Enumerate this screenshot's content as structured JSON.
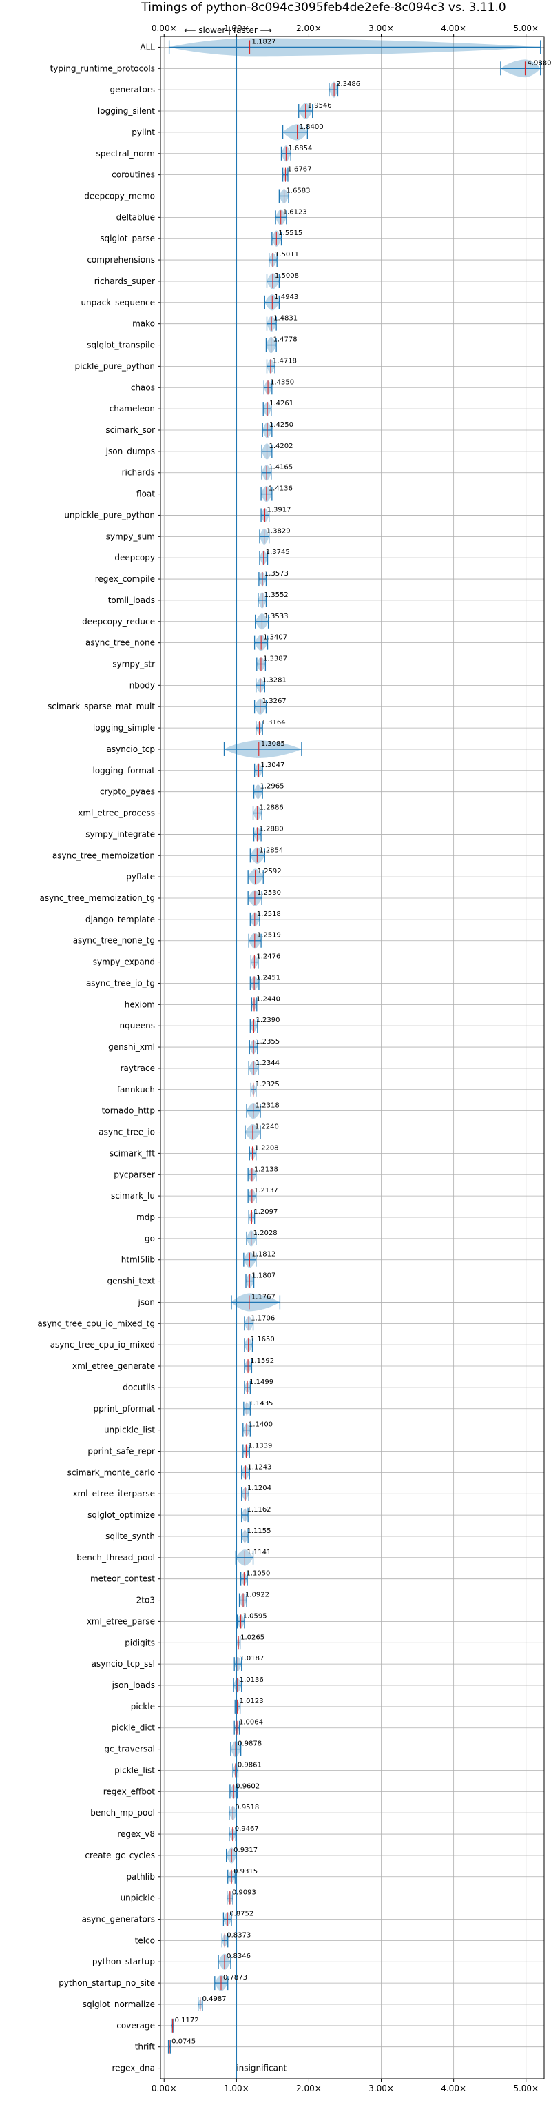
{
  "chart_data": {
    "type": "violin",
    "title": "Timings of python-8c094c3095feb4de2efe-8c094c3 vs. 3.11.0",
    "direction_label": "⟵ slower | faster ⟶",
    "xlim": [
      -0.05,
      5.25
    ],
    "xticks": [
      0,
      1,
      2,
      3,
      4,
      5
    ],
    "xtick_labels": [
      "0.00×",
      "1.00×",
      "2.00×",
      "3.00×",
      "4.00×",
      "5.00×"
    ],
    "reference_line": 1.0,
    "grid": true,
    "benchmarks": [
      {
        "name": "ALL",
        "value": 1.1827,
        "label": "1.1827",
        "lo": 0.07,
        "hi": 5.2,
        "w": 1.0,
        "sig": true
      },
      {
        "name": "typing_runtime_protocols",
        "value": 4.988,
        "label": "4.9880",
        "lo": 4.65,
        "hi": 5.2,
        "w": 1.0,
        "sig": true
      },
      {
        "name": "generators",
        "value": 2.3486,
        "label": "2.3486",
        "lo": 2.28,
        "hi": 2.4,
        "w": 0.9,
        "sig": true
      },
      {
        "name": "logging_silent",
        "value": 1.9546,
        "label": "1.9546",
        "lo": 1.86,
        "hi": 2.05,
        "w": 0.9,
        "sig": true
      },
      {
        "name": "pylint",
        "value": 1.84,
        "label": "1.8400",
        "lo": 1.64,
        "hi": 1.98,
        "w": 0.9,
        "sig": true
      },
      {
        "name": "spectral_norm",
        "value": 1.6854,
        "label": "1.6854",
        "lo": 1.62,
        "hi": 1.75,
        "w": 0.9,
        "sig": true
      },
      {
        "name": "coroutines",
        "value": 1.6767,
        "label": "1.6767",
        "lo": 1.64,
        "hi": 1.71,
        "w": 0.7,
        "sig": true
      },
      {
        "name": "deepcopy_memo",
        "value": 1.6583,
        "label": "1.6583",
        "lo": 1.59,
        "hi": 1.72,
        "w": 0.8,
        "sig": true
      },
      {
        "name": "deltablue",
        "value": 1.6123,
        "label": "1.6123",
        "lo": 1.54,
        "hi": 1.69,
        "w": 0.9,
        "sig": true
      },
      {
        "name": "sqlglot_parse",
        "value": 1.5515,
        "label": "1.5515",
        "lo": 1.49,
        "hi": 1.62,
        "w": 0.9,
        "sig": true
      },
      {
        "name": "comprehensions",
        "value": 1.5011,
        "label": "1.5011",
        "lo": 1.45,
        "hi": 1.56,
        "w": 0.8,
        "sig": true
      },
      {
        "name": "richards_super",
        "value": 1.5008,
        "label": "1.5008",
        "lo": 1.42,
        "hi": 1.59,
        "w": 0.9,
        "sig": true
      },
      {
        "name": "unpack_sequence",
        "value": 1.4943,
        "label": "1.4943",
        "lo": 1.39,
        "hi": 1.59,
        "w": 0.9,
        "sig": true
      },
      {
        "name": "mako",
        "value": 1.4831,
        "label": "1.4831",
        "lo": 1.42,
        "hi": 1.55,
        "w": 0.9,
        "sig": true
      },
      {
        "name": "sqlglot_transpile",
        "value": 1.4778,
        "label": "1.4778",
        "lo": 1.41,
        "hi": 1.55,
        "w": 0.9,
        "sig": true
      },
      {
        "name": "pickle_pure_python",
        "value": 1.4718,
        "label": "1.4718",
        "lo": 1.42,
        "hi": 1.53,
        "w": 0.8,
        "sig": true
      },
      {
        "name": "chaos",
        "value": 1.435,
        "label": "1.4350",
        "lo": 1.38,
        "hi": 1.49,
        "w": 0.8,
        "sig": true
      },
      {
        "name": "chameleon",
        "value": 1.4261,
        "label": "1.4261",
        "lo": 1.37,
        "hi": 1.48,
        "w": 0.8,
        "sig": true
      },
      {
        "name": "scimark_sor",
        "value": 1.425,
        "label": "1.4250",
        "lo": 1.36,
        "hi": 1.49,
        "w": 0.9,
        "sig": true
      },
      {
        "name": "json_dumps",
        "value": 1.4202,
        "label": "1.4202",
        "lo": 1.35,
        "hi": 1.49,
        "w": 0.9,
        "sig": true
      },
      {
        "name": "richards",
        "value": 1.4165,
        "label": "1.4165",
        "lo": 1.35,
        "hi": 1.48,
        "w": 0.9,
        "sig": true
      },
      {
        "name": "float",
        "value": 1.4136,
        "label": "1.4136",
        "lo": 1.34,
        "hi": 1.49,
        "w": 0.9,
        "sig": true
      },
      {
        "name": "unpickle_pure_python",
        "value": 1.3917,
        "label": "1.3917",
        "lo": 1.34,
        "hi": 1.45,
        "w": 0.8,
        "sig": true
      },
      {
        "name": "sympy_sum",
        "value": 1.3829,
        "label": "1.3829",
        "lo": 1.32,
        "hi": 1.45,
        "w": 0.9,
        "sig": true
      },
      {
        "name": "deepcopy",
        "value": 1.3745,
        "label": "1.3745",
        "lo": 1.32,
        "hi": 1.43,
        "w": 0.8,
        "sig": true
      },
      {
        "name": "regex_compile",
        "value": 1.3573,
        "label": "1.3573",
        "lo": 1.31,
        "hi": 1.41,
        "w": 0.8,
        "sig": true
      },
      {
        "name": "tomli_loads",
        "value": 1.3552,
        "label": "1.3552",
        "lo": 1.3,
        "hi": 1.41,
        "w": 0.9,
        "sig": true
      },
      {
        "name": "deepcopy_reduce",
        "value": 1.3533,
        "label": "1.3533",
        "lo": 1.26,
        "hi": 1.44,
        "w": 0.9,
        "sig": true
      },
      {
        "name": "async_tree_none",
        "value": 1.3407,
        "label": "1.3407",
        "lo": 1.25,
        "hi": 1.43,
        "w": 0.9,
        "sig": true
      },
      {
        "name": "sympy_str",
        "value": 1.3387,
        "label": "1.3387",
        "lo": 1.28,
        "hi": 1.4,
        "w": 0.8,
        "sig": true
      },
      {
        "name": "nbody",
        "value": 1.3281,
        "label": "1.3281",
        "lo": 1.27,
        "hi": 1.39,
        "w": 0.8,
        "sig": true
      },
      {
        "name": "scimark_sparse_mat_mult",
        "value": 1.3267,
        "label": "1.3267",
        "lo": 1.25,
        "hi": 1.41,
        "w": 0.9,
        "sig": true
      },
      {
        "name": "logging_simple",
        "value": 1.3164,
        "label": "1.3164",
        "lo": 1.27,
        "hi": 1.36,
        "w": 0.7,
        "sig": true
      },
      {
        "name": "asyncio_tcp",
        "value": 1.3085,
        "label": "1.3085",
        "lo": 0.83,
        "hi": 1.9,
        "w": 1.0,
        "sig": true
      },
      {
        "name": "logging_format",
        "value": 1.3047,
        "label": "1.3047",
        "lo": 1.25,
        "hi": 1.36,
        "w": 0.8,
        "sig": true
      },
      {
        "name": "crypto_pyaes",
        "value": 1.2965,
        "label": "1.2965",
        "lo": 1.24,
        "hi": 1.36,
        "w": 0.8,
        "sig": true
      },
      {
        "name": "xml_etree_process",
        "value": 1.2886,
        "label": "1.2886",
        "lo": 1.23,
        "hi": 1.35,
        "w": 0.8,
        "sig": true
      },
      {
        "name": "sympy_integrate",
        "value": 1.288,
        "label": "1.2880",
        "lo": 1.24,
        "hi": 1.34,
        "w": 0.8,
        "sig": true
      },
      {
        "name": "async_tree_memoization",
        "value": 1.2854,
        "label": "1.2854",
        "lo": 1.19,
        "hi": 1.39,
        "w": 0.9,
        "sig": true
      },
      {
        "name": "pyflate",
        "value": 1.2592,
        "label": "1.2592",
        "lo": 1.16,
        "hi": 1.37,
        "w": 0.9,
        "sig": true
      },
      {
        "name": "async_tree_memoization_tg",
        "value": 1.253,
        "label": "1.2530",
        "lo": 1.16,
        "hi": 1.35,
        "w": 0.9,
        "sig": true
      },
      {
        "name": "django_template",
        "value": 1.2518,
        "label": "1.2518",
        "lo": 1.19,
        "hi": 1.32,
        "w": 0.8,
        "sig": true
      },
      {
        "name": "async_tree_none_tg",
        "value": 1.2519,
        "label": "1.2519",
        "lo": 1.17,
        "hi": 1.34,
        "w": 0.9,
        "sig": true
      },
      {
        "name": "sympy_expand",
        "value": 1.2476,
        "label": "1.2476",
        "lo": 1.2,
        "hi": 1.3,
        "w": 0.7,
        "sig": true
      },
      {
        "name": "async_tree_io_tg",
        "value": 1.2451,
        "label": "1.2451",
        "lo": 1.19,
        "hi": 1.31,
        "w": 0.8,
        "sig": true
      },
      {
        "name": "hexiom",
        "value": 1.244,
        "label": "1.2440",
        "lo": 1.21,
        "hi": 1.28,
        "w": 0.6,
        "sig": true
      },
      {
        "name": "nqueens",
        "value": 1.239,
        "label": "1.2390",
        "lo": 1.19,
        "hi": 1.29,
        "w": 0.7,
        "sig": true
      },
      {
        "name": "genshi_xml",
        "value": 1.2355,
        "label": "1.2355",
        "lo": 1.18,
        "hi": 1.29,
        "w": 0.8,
        "sig": true
      },
      {
        "name": "raytrace",
        "value": 1.2344,
        "label": "1.2344",
        "lo": 1.17,
        "hi": 1.3,
        "w": 0.8,
        "sig": true
      },
      {
        "name": "fannkuch",
        "value": 1.2325,
        "label": "1.2325",
        "lo": 1.2,
        "hi": 1.27,
        "w": 0.6,
        "sig": true
      },
      {
        "name": "tornado_http",
        "value": 1.2318,
        "label": "1.2318",
        "lo": 1.14,
        "hi": 1.33,
        "w": 0.9,
        "sig": true
      },
      {
        "name": "async_tree_io",
        "value": 1.224,
        "label": "1.2240",
        "lo": 1.12,
        "hi": 1.33,
        "w": 0.9,
        "sig": true
      },
      {
        "name": "scimark_fft",
        "value": 1.2208,
        "label": "1.2208",
        "lo": 1.18,
        "hi": 1.27,
        "w": 0.7,
        "sig": true
      },
      {
        "name": "pycparser",
        "value": 1.2138,
        "label": "1.2138",
        "lo": 1.16,
        "hi": 1.27,
        "w": 0.8,
        "sig": true
      },
      {
        "name": "scimark_lu",
        "value": 1.2137,
        "label": "1.2137",
        "lo": 1.16,
        "hi": 1.27,
        "w": 0.8,
        "sig": true
      },
      {
        "name": "mdp",
        "value": 1.2097,
        "label": "1.2097",
        "lo": 1.17,
        "hi": 1.25,
        "w": 0.6,
        "sig": true
      },
      {
        "name": "go",
        "value": 1.2028,
        "label": "1.2028",
        "lo": 1.14,
        "hi": 1.27,
        "w": 0.9,
        "sig": true
      },
      {
        "name": "html5lib",
        "value": 1.1812,
        "label": "1.1812",
        "lo": 1.1,
        "hi": 1.27,
        "w": 0.9,
        "sig": true
      },
      {
        "name": "genshi_text",
        "value": 1.1807,
        "label": "1.1807",
        "lo": 1.13,
        "hi": 1.24,
        "w": 0.8,
        "sig": true
      },
      {
        "name": "json",
        "value": 1.1767,
        "label": "1.1767",
        "lo": 0.93,
        "hi": 1.6,
        "w": 1.0,
        "sig": true
      },
      {
        "name": "async_tree_cpu_io_mixed_tg",
        "value": 1.1706,
        "label": "1.1706",
        "lo": 1.11,
        "hi": 1.23,
        "w": 0.8,
        "sig": true
      },
      {
        "name": "async_tree_cpu_io_mixed",
        "value": 1.165,
        "label": "1.1650",
        "lo": 1.11,
        "hi": 1.22,
        "w": 0.8,
        "sig": true
      },
      {
        "name": "xml_etree_generate",
        "value": 1.1592,
        "label": "1.1592",
        "lo": 1.11,
        "hi": 1.21,
        "w": 0.7,
        "sig": true
      },
      {
        "name": "docutils",
        "value": 1.1499,
        "label": "1.1499",
        "lo": 1.11,
        "hi": 1.19,
        "w": 0.6,
        "sig": true
      },
      {
        "name": "pprint_pformat",
        "value": 1.1435,
        "label": "1.1435",
        "lo": 1.1,
        "hi": 1.19,
        "w": 0.7,
        "sig": true
      },
      {
        "name": "unpickle_list",
        "value": 1.14,
        "label": "1.1400",
        "lo": 1.09,
        "hi": 1.19,
        "w": 0.7,
        "sig": true
      },
      {
        "name": "pprint_safe_repr",
        "value": 1.1339,
        "label": "1.1339",
        "lo": 1.09,
        "hi": 1.18,
        "w": 0.7,
        "sig": true
      },
      {
        "name": "scimark_monte_carlo",
        "value": 1.1243,
        "label": "1.1243",
        "lo": 1.07,
        "hi": 1.18,
        "w": 0.8,
        "sig": true
      },
      {
        "name": "xml_etree_iterparse",
        "value": 1.1204,
        "label": "1.1204",
        "lo": 1.07,
        "hi": 1.17,
        "w": 0.7,
        "sig": true
      },
      {
        "name": "sqlglot_optimize",
        "value": 1.1162,
        "label": "1.1162",
        "lo": 1.07,
        "hi": 1.16,
        "w": 0.7,
        "sig": true
      },
      {
        "name": "sqlite_synth",
        "value": 1.1155,
        "label": "1.1155",
        "lo": 1.07,
        "hi": 1.16,
        "w": 0.7,
        "sig": true
      },
      {
        "name": "bench_thread_pool",
        "value": 1.1141,
        "label": "1.1141",
        "lo": 0.99,
        "hi": 1.23,
        "w": 0.9,
        "sig": true
      },
      {
        "name": "meteor_contest",
        "value": 1.105,
        "label": "1.1050",
        "lo": 1.06,
        "hi": 1.15,
        "w": 0.7,
        "sig": true
      },
      {
        "name": "2to3",
        "value": 1.0922,
        "label": "1.0922",
        "lo": 1.04,
        "hi": 1.14,
        "w": 0.8,
        "sig": true
      },
      {
        "name": "xml_etree_parse",
        "value": 1.0595,
        "label": "1.0595",
        "lo": 1.01,
        "hi": 1.11,
        "w": 0.8,
        "sig": true
      },
      {
        "name": "pidigits",
        "value": 1.0265,
        "label": "1.0265",
        "lo": 1.0,
        "hi": 1.05,
        "w": 0.5,
        "sig": true
      },
      {
        "name": "asyncio_tcp_ssl",
        "value": 1.0187,
        "label": "1.0187",
        "lo": 0.97,
        "hi": 1.07,
        "w": 0.8,
        "sig": true
      },
      {
        "name": "json_loads",
        "value": 1.0136,
        "label": "1.0136",
        "lo": 0.96,
        "hi": 1.07,
        "w": 0.8,
        "sig": true
      },
      {
        "name": "pickle",
        "value": 1.0123,
        "label": "1.0123",
        "lo": 0.98,
        "hi": 1.05,
        "w": 0.6,
        "sig": true
      },
      {
        "name": "pickle_dict",
        "value": 1.0064,
        "label": "1.0064",
        "lo": 0.97,
        "hi": 1.04,
        "w": 0.6,
        "sig": true
      },
      {
        "name": "gc_traversal",
        "value": 0.9878,
        "label": "0.9878",
        "lo": 0.92,
        "hi": 1.06,
        "w": 0.9,
        "sig": true
      },
      {
        "name": "pickle_list",
        "value": 0.9861,
        "label": "0.9861",
        "lo": 0.95,
        "hi": 1.02,
        "w": 0.6,
        "sig": true
      },
      {
        "name": "regex_effbot",
        "value": 0.9602,
        "label": "0.9602",
        "lo": 0.91,
        "hi": 1.01,
        "w": 0.8,
        "sig": true
      },
      {
        "name": "bench_mp_pool",
        "value": 0.9518,
        "label": "0.9518",
        "lo": 0.9,
        "hi": 1.0,
        "w": 0.8,
        "sig": true
      },
      {
        "name": "regex_v8",
        "value": 0.9467,
        "label": "0.9467",
        "lo": 0.9,
        "hi": 0.99,
        "w": 0.7,
        "sig": true
      },
      {
        "name": "create_gc_cycles",
        "value": 0.9317,
        "label": "0.9317",
        "lo": 0.86,
        "hi": 1.0,
        "w": 0.9,
        "sig": true
      },
      {
        "name": "pathlib",
        "value": 0.9315,
        "label": "0.9315",
        "lo": 0.88,
        "hi": 0.98,
        "w": 0.7,
        "sig": true
      },
      {
        "name": "unpickle",
        "value": 0.9093,
        "label": "0.9093",
        "lo": 0.87,
        "hi": 0.95,
        "w": 0.7,
        "sig": true
      },
      {
        "name": "async_generators",
        "value": 0.8752,
        "label": "0.8752",
        "lo": 0.82,
        "hi": 0.93,
        "w": 0.8,
        "sig": true
      },
      {
        "name": "telco",
        "value": 0.8373,
        "label": "0.8373",
        "lo": 0.8,
        "hi": 0.88,
        "w": 0.7,
        "sig": true
      },
      {
        "name": "python_startup",
        "value": 0.8346,
        "label": "0.8346",
        "lo": 0.75,
        "hi": 0.92,
        "w": 0.9,
        "sig": true
      },
      {
        "name": "python_startup_no_site",
        "value": 0.7873,
        "label": "0.7873",
        "lo": 0.7,
        "hi": 0.88,
        "w": 0.9,
        "sig": true
      },
      {
        "name": "sqlglot_normalize",
        "value": 0.4987,
        "label": "0.4987",
        "lo": 0.47,
        "hi": 0.53,
        "w": 0.6,
        "sig": true
      },
      {
        "name": "coverage",
        "value": 0.1172,
        "label": "0.1172",
        "lo": 0.1,
        "hi": 0.13,
        "w": 0.3,
        "sig": true
      },
      {
        "name": "thrift",
        "value": 0.0745,
        "label": "0.0745",
        "lo": 0.06,
        "hi": 0.09,
        "w": 0.3,
        "sig": true
      },
      {
        "name": "regex_dna",
        "value": null,
        "label": "insignificant",
        "lo": null,
        "hi": null,
        "w": 0,
        "sig": false
      }
    ]
  }
}
